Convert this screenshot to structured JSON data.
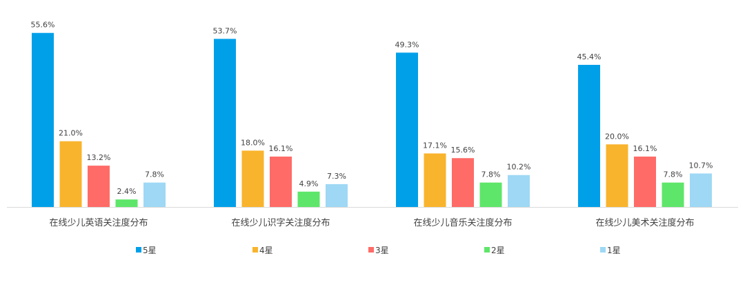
{
  "chart_data": {
    "type": "bar",
    "categories": [
      "在线少儿英语关注度分布",
      "在线少儿识字关注度分布",
      "在线少儿音乐关注度分布",
      "在线少儿美术关注度分布"
    ],
    "series": [
      {
        "name": "5星",
        "color": "#00a0e9",
        "values": [
          55.6,
          53.7,
          49.3,
          45.4
        ],
        "labels": [
          "55.6%",
          "53.7%",
          "49.3%",
          "45.4%"
        ]
      },
      {
        "name": "4星",
        "color": "#f9b42d",
        "values": [
          21.0,
          18.0,
          17.1,
          20.0
        ],
        "labels": [
          "21.0%",
          "18.0%",
          "17.1%",
          "20.0%"
        ]
      },
      {
        "name": "3星",
        "color": "#ff6b67",
        "values": [
          13.2,
          16.1,
          15.6,
          16.1
        ],
        "labels": [
          "13.2%",
          "16.1%",
          "15.6%",
          "16.1%"
        ]
      },
      {
        "name": "2星",
        "color": "#5ee66a",
        "values": [
          2.4,
          4.9,
          7.8,
          7.8
        ],
        "labels": [
          "2.4%",
          "4.9%",
          "7.8%",
          "7.8%"
        ]
      },
      {
        "name": "1星",
        "color": "#9ed8f5",
        "values": [
          7.8,
          7.3,
          10.2,
          10.7
        ],
        "labels": [
          "7.8%",
          "7.3%",
          "10.2%",
          "10.7%"
        ]
      }
    ],
    "ylim": [
      0,
      60
    ],
    "grid": false,
    "legend_position": "bottom"
  }
}
